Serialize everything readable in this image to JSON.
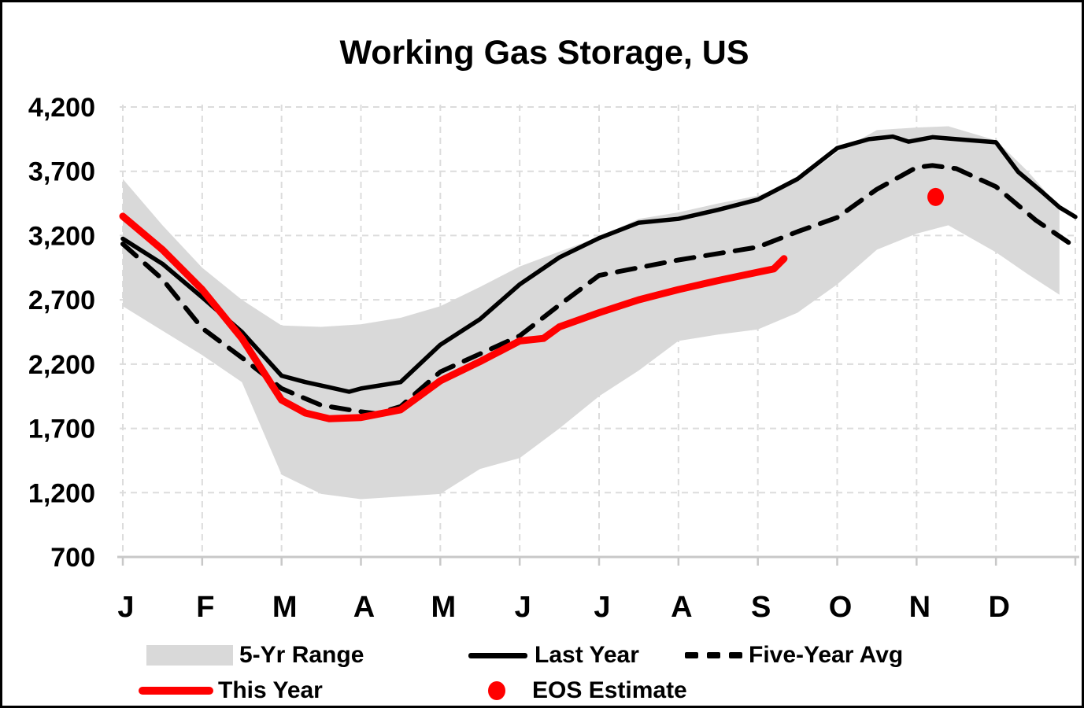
{
  "title": "Working Gas Storage, US",
  "colors": {
    "band": "#d9d9d9",
    "last_year": "#000000",
    "five_year_avg": "#000000",
    "this_year": "#ff0000",
    "eos_estimate": "#ff0000",
    "grid": "#dcdcdc",
    "axis": "#c8c8c8"
  },
  "legend": {
    "position": "bottom",
    "items": [
      {
        "label": "5-Yr Range",
        "swatch": "band"
      },
      {
        "label": "Last Year",
        "swatch": "solid-black-line"
      },
      {
        "label": "Five-Year Avg",
        "swatch": "dashed-black-line"
      },
      {
        "label": "This Year",
        "swatch": "solid-red-line"
      },
      {
        "label": "EOS Estimate",
        "swatch": "red-dot"
      }
    ]
  },
  "chart_data": {
    "type": "line",
    "title": "Working Gas Storage, US",
    "xlabel": "",
    "ylabel": "",
    "x_unit": "months (0 = Jan 1, 12 = Dec 31)",
    "x_tick_labels": [
      "J",
      "F",
      "M",
      "A",
      "M",
      "J",
      "J",
      "A",
      "S",
      "O",
      "N",
      "D"
    ],
    "y_ticks": [
      4200,
      3700,
      3200,
      2700,
      2200,
      1700,
      1200,
      700
    ],
    "y_tick_labels": [
      "4,200",
      "3,700",
      "3,200",
      "2,700",
      "2,200",
      "1,700",
      "1,200",
      "700"
    ],
    "ylim": [
      700,
      4200
    ],
    "xlim": [
      0,
      12
    ],
    "grid": "dashed-both-axes",
    "legend_position": "bottom",
    "series": [
      {
        "name": "5-Yr Range",
        "type": "band",
        "color": "#d9d9d9",
        "x": [
          0,
          0.5,
          1,
          1.5,
          2,
          2.5,
          3,
          3.5,
          4,
          4.5,
          5,
          5.5,
          6,
          6.5,
          7,
          7.5,
          8,
          8.5,
          9,
          9.5,
          10,
          10.4,
          11,
          11.4,
          11.8
        ],
        "upper": [
          3640,
          3280,
          2950,
          2700,
          2500,
          2490,
          2510,
          2560,
          2650,
          2800,
          2960,
          3075,
          3190,
          3330,
          3380,
          3450,
          3510,
          3620,
          3850,
          4020,
          4040,
          4050,
          3940,
          3700,
          3420
        ],
        "lower": [
          2650,
          2460,
          2270,
          2060,
          1340,
          1190,
          1150,
          1170,
          1190,
          1385,
          1470,
          1700,
          1950,
          2150,
          2380,
          2430,
          2470,
          2600,
          2820,
          3090,
          3215,
          3280,
          3070,
          2900,
          2740
        ]
      },
      {
        "name": "Last Year",
        "type": "line",
        "style": "solid",
        "color": "#000000",
        "x": [
          0,
          0.5,
          1,
          1.5,
          2,
          2.3,
          2.6,
          2.85,
          3,
          3.5,
          4,
          4.5,
          5,
          5.5,
          6,
          6.5,
          7,
          7.5,
          8,
          8.5,
          9,
          9.4,
          9.7,
          9.9,
          10.2,
          10.5,
          11,
          11.28,
          11.58,
          11.8,
          12
        ],
        "values": [
          3175,
          2980,
          2720,
          2450,
          2110,
          2060,
          2020,
          1985,
          2010,
          2060,
          2350,
          2550,
          2820,
          3030,
          3180,
          3300,
          3330,
          3400,
          3480,
          3640,
          3880,
          3950,
          3970,
          3930,
          3965,
          3950,
          3925,
          3695,
          3540,
          3420,
          3345
        ]
      },
      {
        "name": "Five-Year Avg",
        "type": "line",
        "style": "dashed",
        "color": "#000000",
        "x": [
          0,
          0.5,
          1,
          1.5,
          2,
          2.5,
          3,
          3.2,
          3.5,
          4,
          4.5,
          5,
          5.5,
          6,
          6.5,
          7,
          7.5,
          8,
          8.5,
          9,
          9.5,
          10,
          10.2,
          10.5,
          11,
          11.5,
          12
        ],
        "values": [
          3135,
          2860,
          2480,
          2250,
          2010,
          1880,
          1830,
          1815,
          1870,
          2140,
          2280,
          2420,
          2660,
          2890,
          2950,
          3010,
          3060,
          3110,
          3230,
          3340,
          3560,
          3730,
          3745,
          3720,
          3580,
          3320,
          3110
        ]
      },
      {
        "name": "This Year",
        "type": "line",
        "style": "solid",
        "color": "#ff0000",
        "x": [
          0,
          0.5,
          1,
          1.5,
          2,
          2.3,
          2.6,
          3,
          3.5,
          4,
          4.5,
          5,
          5.3,
          5.5,
          6,
          6.5,
          7,
          7.5,
          8,
          8.2,
          8.33
        ],
        "values": [
          3350,
          3090,
          2780,
          2400,
          1920,
          1820,
          1775,
          1785,
          1845,
          2070,
          2220,
          2380,
          2400,
          2490,
          2600,
          2700,
          2780,
          2850,
          2915,
          2940,
          3020
        ]
      },
      {
        "name": "EOS Estimate",
        "type": "point",
        "color": "#ff0000",
        "x": 10.24,
        "value": 3500
      }
    ]
  }
}
